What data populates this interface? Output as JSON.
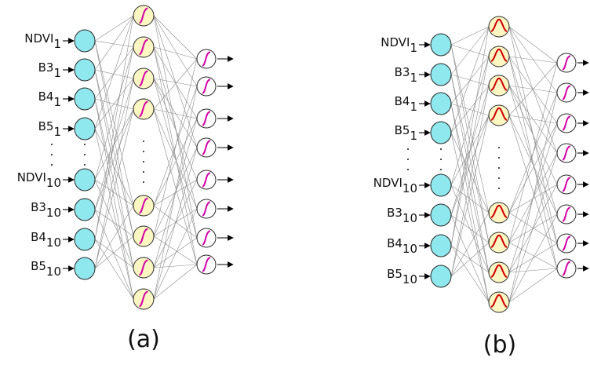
{
  "panels": [
    {
      "id": "a",
      "caption": "(a)",
      "hidden_activation": "sigmoid",
      "input_labels": [
        {
          "main": "NDVI",
          "sub": "1"
        },
        {
          "main": "B3",
          "sub": "1"
        },
        {
          "main": "B4",
          "sub": "1"
        },
        {
          "main": "B5",
          "sub": "1"
        },
        {
          "main": "NDVI",
          "sub": "10"
        },
        {
          "main": "B3",
          "sub": "10"
        },
        {
          "main": "B4",
          "sub": "10"
        },
        {
          "main": "B5",
          "sub": "10"
        }
      ]
    },
    {
      "id": "b",
      "caption": "(b)",
      "hidden_activation": "gaussian",
      "input_labels": [
        {
          "main": "NDVI",
          "sub": "1"
        },
        {
          "main": "B3",
          "sub": "1"
        },
        {
          "main": "B4",
          "sub": "1"
        },
        {
          "main": "B5",
          "sub": "1"
        },
        {
          "main": "NDVI",
          "sub": "10"
        },
        {
          "main": "B3",
          "sub": "10"
        },
        {
          "main": "B4",
          "sub": "10"
        },
        {
          "main": "B5",
          "sub": "10"
        }
      ]
    }
  ],
  "colors": {
    "input_fill": "#8fe8ee",
    "hidden_fill": "#fcf6c2",
    "output_fill": "#ffffff",
    "node_stroke": "#2a2a2a",
    "sigmoid_curve": "#d400a8",
    "gaussian_curve": "#d00000"
  },
  "icons": {
    "sigmoid": "sigmoid-curve-icon",
    "gaussian": "gaussian-curve-icon"
  }
}
